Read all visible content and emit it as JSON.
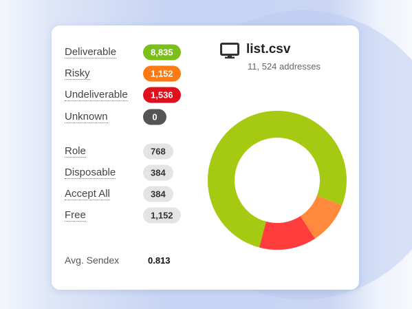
{
  "file": {
    "name": "list.csv",
    "count": "11, 524 addresses"
  },
  "status": [
    {
      "label": "Deliverable",
      "value": 8835,
      "value_label": "8,835",
      "badge_color": "#7cbf1c",
      "slice_color": "#a6c912"
    },
    {
      "label": "Risky",
      "value": 1152,
      "value_label": "1,152",
      "badge_color": "#ff7a12",
      "slice_color": "#ff8a3d"
    },
    {
      "label": "Undeliverable",
      "value": 1536,
      "value_label": "1,536",
      "badge_color": "#df0f1d",
      "slice_color": "#ff3d3d"
    },
    {
      "label": "Unknown",
      "value": 0,
      "value_label": "0",
      "badge_color": "#555555",
      "slice_color": "#555555"
    }
  ],
  "attributes": [
    {
      "label": "Role",
      "value_label": "768"
    },
    {
      "label": "Disposable",
      "value_label": "384"
    },
    {
      "label": "Accept All",
      "value_label": "384"
    },
    {
      "label": "Free",
      "value_label": "1,152"
    }
  ],
  "sendex": {
    "label": "Avg. Sendex",
    "value": "0.813"
  }
}
